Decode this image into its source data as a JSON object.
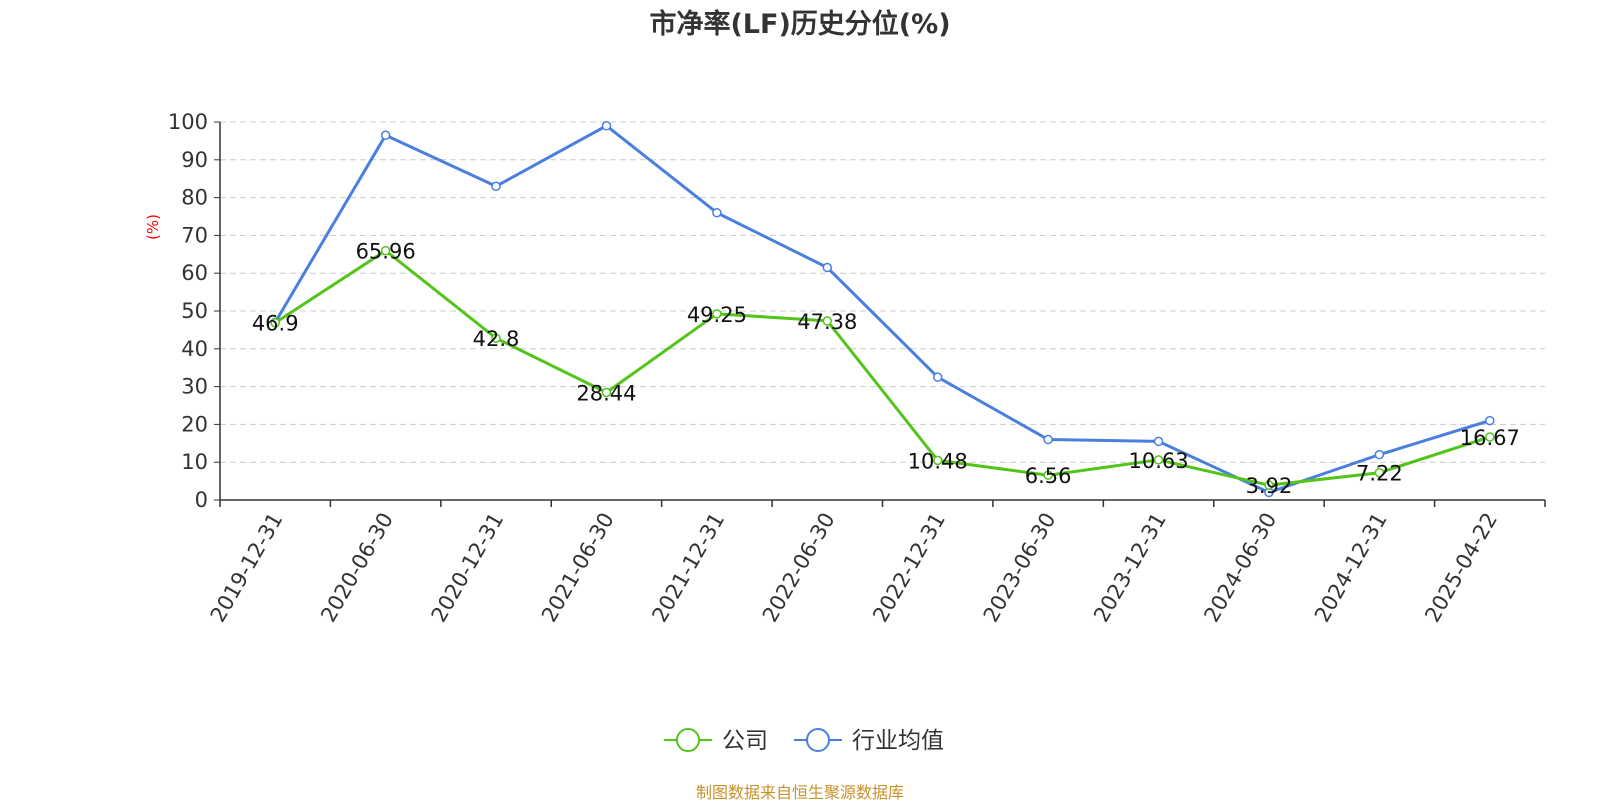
{
  "chart_data": {
    "type": "line",
    "title": "市净率(LF)历史分位(%)",
    "ylabel": "(%)",
    "xlabel": "",
    "ylim": [
      0,
      100
    ],
    "yticks": [
      0,
      10,
      20,
      30,
      40,
      50,
      60,
      70,
      80,
      90,
      100
    ],
    "grid": true,
    "legend_position": "bottom-center",
    "categories": [
      "2019-12-31",
      "2020-06-30",
      "2020-12-31",
      "2021-06-30",
      "2021-12-31",
      "2022-06-30",
      "2022-12-31",
      "2023-06-30",
      "2023-12-31",
      "2024-06-30",
      "2024-12-31",
      "2025-04-22"
    ],
    "series": [
      {
        "name": "公司",
        "color": "#52c41a",
        "values": [
          46.9,
          65.96,
          42.8,
          28.44,
          49.25,
          47.38,
          10.48,
          6.56,
          10.63,
          3.92,
          7.22,
          16.67
        ],
        "data_labels": [
          "46.9",
          "65.96",
          "42.8",
          "28.44",
          "49.25",
          "47.38",
          "10.48",
          "6.56",
          "10.63",
          "3.92",
          "7.22",
          "16.67"
        ]
      },
      {
        "name": "行业均值",
        "color": "#4a7fe0",
        "values": [
          47.0,
          96.5,
          83.0,
          99.0,
          76.0,
          61.5,
          32.5,
          16.0,
          15.5,
          2.0,
          12.0,
          21.0
        ]
      }
    ]
  },
  "footer": {
    "source": "制图数据来自恒生聚源数据库"
  },
  "colors": {
    "axis": "#333333",
    "grid": "#cccccc",
    "ylabel": "#ff0000",
    "source": "#c8922a"
  }
}
